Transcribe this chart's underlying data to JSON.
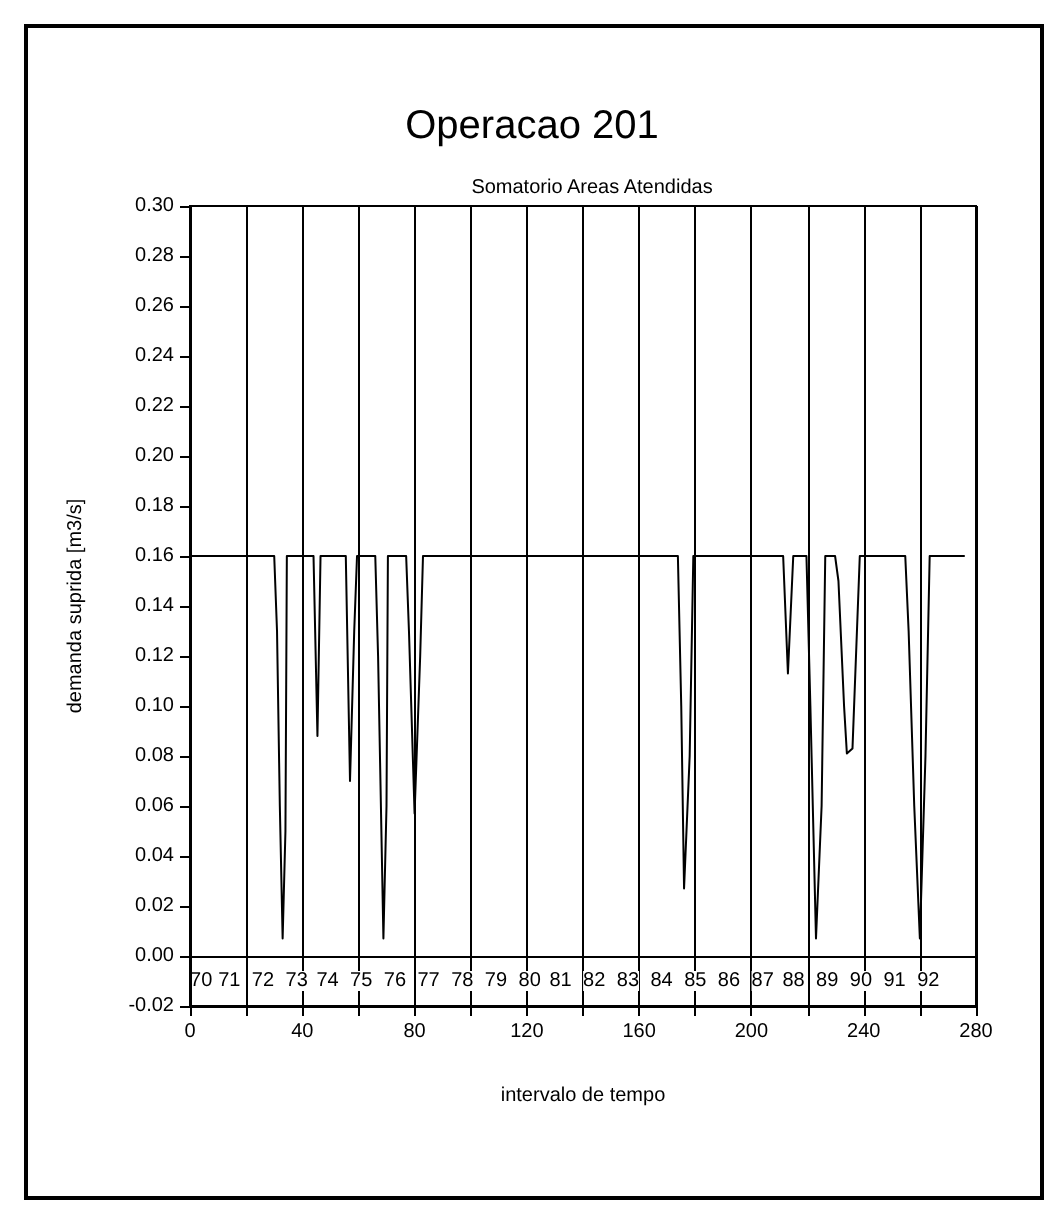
{
  "chart_data": {
    "type": "line",
    "title": "Operacao 201",
    "subtitle": "Somatorio Areas Atendidas",
    "xlabel": "intervalo de tempo",
    "ylabel": "demanda suprida [m3/s]",
    "xlim": [
      0,
      280
    ],
    "ylim": [
      -0.02,
      0.3
    ],
    "xticks": [
      0,
      {
        "value": 20,
        "label": null
      },
      40,
      {
        "value": 60,
        "label": null
      },
      80,
      {
        "value": 100,
        "label": null
      },
      120,
      {
        "value": 140,
        "label": null
      },
      160,
      {
        "value": 180,
        "label": null
      },
      200,
      {
        "value": 220,
        "label": null
      },
      240,
      {
        "value": 260,
        "label": null
      },
      280
    ],
    "yticks": [
      {
        "value": -0.02,
        "label": "-0.02"
      },
      {
        "value": 0,
        "label": "0.00"
      },
      {
        "value": 0.02,
        "label": "0.02"
      },
      {
        "value": 0.04,
        "label": "0.04"
      },
      {
        "value": 0.06,
        "label": "0.06"
      },
      {
        "value": 0.08,
        "label": "0.08"
      },
      {
        "value": 0.1,
        "label": "0.10"
      },
      {
        "value": 0.12,
        "label": "0.12"
      },
      {
        "value": 0.14,
        "label": "0.14"
      },
      {
        "value": 0.16,
        "label": "0.16"
      },
      {
        "value": 0.18,
        "label": "0.18"
      },
      {
        "value": 0.2,
        "label": "0.20"
      },
      {
        "value": 0.22,
        "label": "0.22"
      },
      {
        "value": 0.24,
        "label": "0.24"
      },
      {
        "value": 0.26,
        "label": "0.26"
      },
      {
        "value": 0.28,
        "label": "0.28"
      },
      {
        "value": 0.3,
        "label": "0.30"
      }
    ],
    "grid": "x",
    "marker": "none",
    "line_style": "solid",
    "ref_lines": [
      {
        "axis": "y",
        "value": 0,
        "label": null,
        "color": "#000000"
      }
    ],
    "annotations": [
      {
        "text": "70",
        "x": 4,
        "y": -0.01
      },
      {
        "text": "71",
        "x": 14,
        "y": -0.01
      },
      {
        "text": "72",
        "x": 26,
        "y": -0.01
      },
      {
        "text": "73",
        "x": 38,
        "y": -0.01
      },
      {
        "text": "74",
        "x": 49,
        "y": -0.01
      },
      {
        "text": "75",
        "x": 61,
        "y": -0.01
      },
      {
        "text": "76",
        "x": 73,
        "y": -0.01
      },
      {
        "text": "77",
        "x": 85,
        "y": -0.01
      },
      {
        "text": "78",
        "x": 97,
        "y": -0.01
      },
      {
        "text": "79",
        "x": 109,
        "y": -0.01
      },
      {
        "text": "80",
        "x": 121,
        "y": -0.01
      },
      {
        "text": "81",
        "x": 132,
        "y": -0.01
      },
      {
        "text": "82",
        "x": 144,
        "y": -0.01
      },
      {
        "text": "83",
        "x": 156,
        "y": -0.01
      },
      {
        "text": "84",
        "x": 168,
        "y": -0.01
      },
      {
        "text": "85",
        "x": 180,
        "y": -0.01
      },
      {
        "text": "86",
        "x": 192,
        "y": -0.01
      },
      {
        "text": "87",
        "x": 204,
        "y": -0.01
      },
      {
        "text": "88",
        "x": 215,
        "y": -0.01
      },
      {
        "text": "89",
        "x": 227,
        "y": -0.01
      },
      {
        "text": "90",
        "x": 239,
        "y": -0.01
      },
      {
        "text": "91",
        "x": 251,
        "y": -0.01
      },
      {
        "text": "92",
        "x": 263,
        "y": -0.01
      }
    ],
    "series": [
      {
        "color": "#000000",
        "x": [
          0,
          30,
          31,
          32,
          33,
          34,
          34.5,
          44,
          45.4,
          46.5,
          55.5,
          56,
          57,
          58.5,
          59.5,
          66,
          67,
          68.9,
          70,
          70.5,
          77,
          78,
          80,
          82,
          83,
          173.8,
          175,
          176,
          178,
          179.3,
          211.3,
          213,
          214.9,
          219.6,
          221,
          223,
          225,
          226.3,
          229.8,
          231,
          233,
          234,
          236,
          238.6,
          254.8,
          256,
          258,
          260,
          262,
          263.5,
          276
        ],
        "values": [
          0.16,
          0.16,
          0.13,
          0.06,
          0.007,
          0.05,
          0.16,
          0.16,
          0.088,
          0.16,
          0.16,
          0.13,
          0.07,
          0.13,
          0.16,
          0.16,
          0.12,
          0.007,
          0.06,
          0.16,
          0.16,
          0.13,
          0.057,
          0.12,
          0.16,
          0.16,
          0.1,
          0.027,
          0.08,
          0.16,
          0.16,
          0.113,
          0.16,
          0.16,
          0.1,
          0.007,
          0.06,
          0.16,
          0.16,
          0.15,
          0.1,
          0.081,
          0.083,
          0.16,
          0.16,
          0.13,
          0.06,
          0.007,
          0.08,
          0.16,
          0.16
        ]
      }
    ]
  }
}
